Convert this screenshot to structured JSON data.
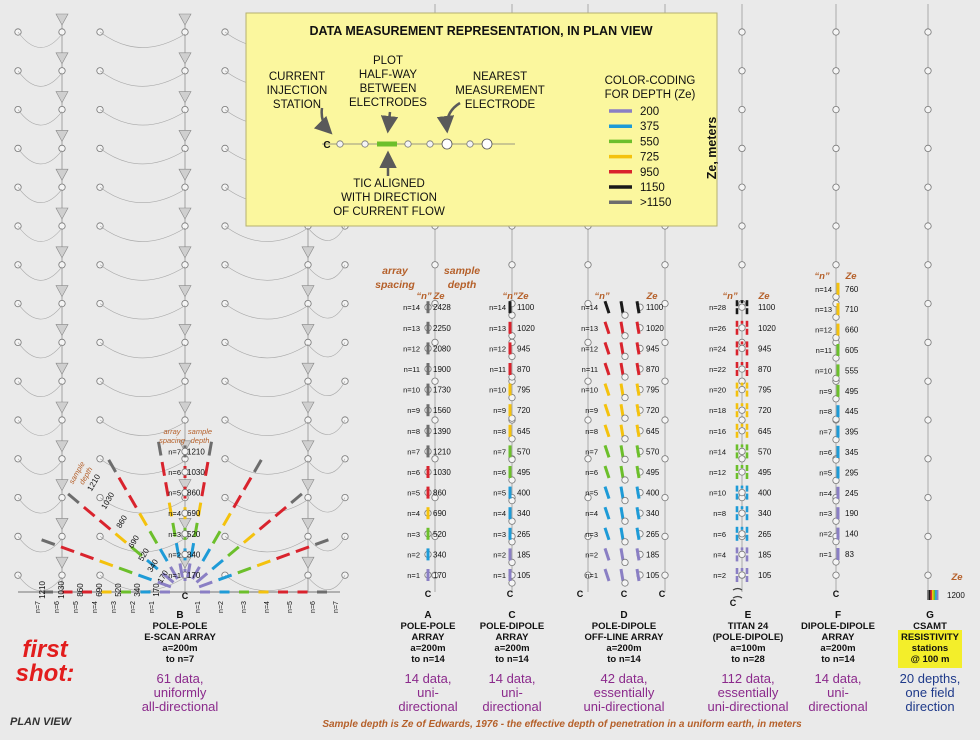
{
  "depth_colors": {
    "200": "#8a7fc4",
    "375": "#1e9bd7",
    "550": "#6cbf2b",
    "725": "#f4c20d",
    "950": "#d9232d",
    "1150": "#1a1a1a",
    "over1150": "#6d6d6d"
  },
  "legend_box": {
    "title": "DATA MEASUREMENT REPRESENTATION, IN PLAN VIEW",
    "current_injection": [
      "CURRENT",
      "INJECTION",
      "STATION"
    ],
    "plot_halfway": [
      "PLOT",
      "HALF-WAY",
      "BETWEEN",
      "ELECTRODES"
    ],
    "nearest_electrode": [
      "NEAREST",
      "MEASUREMENT",
      "ELECTRODE"
    ],
    "tic_aligned": [
      "TIC ALIGNED",
      "WITH DIRECTION",
      "OF CURRENT FLOW"
    ],
    "color_coding": [
      "COLOR-CODING",
      "FOR DEPTH (Ze)"
    ],
    "c_label": "C",
    "ze_axis": "Ze, meters",
    "legend_entries": [
      {
        "label": "200",
        "color": "#8a7fc4"
      },
      {
        "label": "375",
        "color": "#1e9bd7"
      },
      {
        "label": "550",
        "color": "#6cbf2b"
      },
      {
        "label": "725",
        "color": "#f4c20d"
      },
      {
        "label": "950",
        "color": "#d9232d"
      },
      {
        "label": "1150",
        "color": "#1a1a1a"
      },
      {
        "label": ">1150",
        "color": "#6d6d6d"
      }
    ]
  },
  "annotations": {
    "array_spacing": [
      "array",
      "spacing"
    ],
    "sample_depth": [
      "sample",
      "depth"
    ],
    "n_quote": "“n”",
    "ze": "Ze",
    "small_array_spacing": [
      "array",
      "spacing"
    ],
    "small_sample_depth": [
      "sample",
      "depth"
    ],
    "diag_sample_depth": [
      "sample",
      "depth"
    ],
    "c": "C"
  },
  "array_A": {
    "ze": [
      "170",
      "340",
      "520",
      "690",
      "860",
      "1030",
      "1210",
      "1390",
      "1560",
      "1730",
      "1900",
      "2080",
      "2250",
      "2428"
    ],
    "labels": [
      "A",
      "POLE-POLE",
      "ARRAY",
      "a=200m",
      "to n=14"
    ],
    "summary": [
      "14 data,",
      "uni-",
      "directional"
    ]
  },
  "array_C": {
    "ze": [
      "105",
      "185",
      "265",
      "340",
      "400",
      "495",
      "570",
      "645",
      "720",
      "795",
      "870",
      "945",
      "1020",
      "1100"
    ],
    "labels": [
      "C",
      "POLE-DIPOLE",
      "ARRAY",
      "a=200m",
      "to n=14"
    ],
    "summary": [
      "14 data,",
      "uni-",
      "directional"
    ]
  },
  "array_D": {
    "ze": [
      "105",
      "185",
      "265",
      "340",
      "400",
      "495",
      "570",
      "645",
      "720",
      "795",
      "870",
      "945",
      "1020",
      "1100"
    ],
    "labels": [
      "D",
      "POLE-DIPOLE",
      "OFF-LINE ARRAY",
      "a=200m",
      "to n=14"
    ],
    "summary": [
      "42 data,",
      "essentially",
      "uni-directional"
    ]
  },
  "array_E": {
    "n": [
      "n=2",
      "n=4",
      "n=6",
      "n=8",
      "n=10",
      "n=12",
      "n=14",
      "n=16",
      "n=18",
      "n=20",
      "n=22",
      "n=24",
      "n=26",
      "n=28"
    ],
    "ze": [
      "105",
      "185",
      "265",
      "340",
      "400",
      "495",
      "570",
      "645",
      "720",
      "795",
      "870",
      "945",
      "1020",
      "1100"
    ],
    "labels": [
      "E",
      "TITAN 24",
      "(POLE-DIPOLE)",
      "a=100m",
      "to n=28"
    ],
    "summary": [
      "112 data,",
      "essentially",
      "uni-directional"
    ]
  },
  "array_F": {
    "ze": [
      "83",
      "140",
      "190",
      "245",
      "295",
      "345",
      "395",
      "445",
      "495",
      "555",
      "605",
      "660",
      "710",
      "760"
    ],
    "labels": [
      "F",
      "DIPOLE-DIPOLE",
      "ARRAY",
      "a=200m",
      "to n=14"
    ],
    "summary": [
      "14 data,",
      "uni-",
      "directional"
    ]
  },
  "array_B": {
    "ze": [
      "170",
      "340",
      "520",
      "690",
      "860",
      "1030",
      "1210"
    ],
    "bottom_labels": [
      "n=7",
      "n=6",
      "n=5",
      "n=4",
      "n=3",
      "n=2",
      "n=1",
      "n=1",
      "n=2",
      "n=3",
      "n=4",
      "n=5",
      "n=6",
      "n=7"
    ],
    "bottom_values": [
      "1210",
      "1030",
      "860",
      "690",
      "520",
      "340",
      "170"
    ],
    "diag_values": [
      "1210",
      "1030",
      "860",
      "690",
      "520",
      "340",
      "170"
    ],
    "labels": [
      "B",
      "POLE-POLE",
      "E-SCAN ARRAY",
      "a=200m",
      "to n=7"
    ],
    "summary": [
      "61 data,",
      "uniformly",
      "all-directional"
    ]
  },
  "array_G": {
    "ze_label": "Ze",
    "value": "1200",
    "labels": [
      "G",
      "CSAMT",
      "RESISTIVITY",
      "stations",
      "@ 100 m"
    ],
    "summary": [
      "20 depths,",
      "one field",
      "direction"
    ]
  },
  "first_shot": [
    "first",
    "shot:"
  ],
  "plan_view": "PLAN VIEW",
  "footnote": "Sample depth is Ze of Edwards, 1976 - the effective depth of penetration in a uniform earth, in meters"
}
